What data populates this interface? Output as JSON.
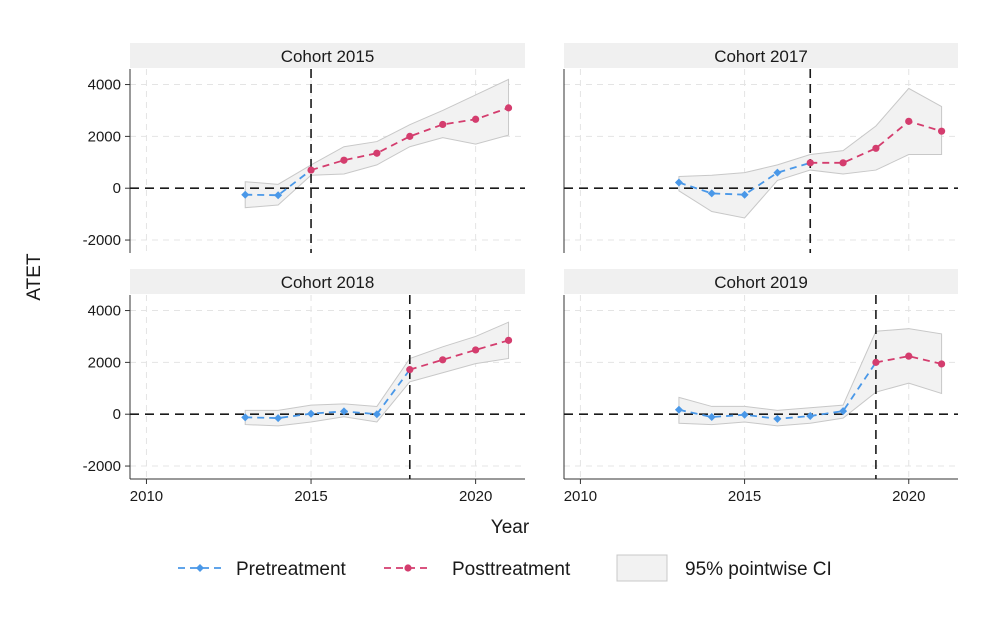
{
  "chart_data": {
    "type": "line",
    "ylabel": "ATET",
    "xlabel": "Year",
    "x_ticks": [
      2010,
      2015,
      2020
    ],
    "y_ticks": [
      -2000,
      0,
      2000,
      4000
    ],
    "x_ticks_shown_on": "bottom panels only",
    "xlim": [
      2009.5,
      2021.5
    ],
    "ylim": [
      -2500,
      4600
    ],
    "grid": "dashed light",
    "legend_position": "bottom",
    "colors": {
      "pretreatment": "#4a98e8",
      "posttreatment": "#d43d6e",
      "ci_fill": "#f2f2f2",
      "ci_stroke": "#c8c8c8",
      "strip_bg": "#f0f0f0",
      "reference_line": "#1a1a1a"
    },
    "legend": [
      {
        "key": "pre",
        "label": "Pretreatment"
      },
      {
        "key": "post",
        "label": "Posttreatment"
      },
      {
        "key": "ci",
        "label": "95% pointwise CI"
      }
    ],
    "panels": [
      {
        "title": "Cohort 2015",
        "treatment_year": 2015,
        "years": [
          2013,
          2014,
          2015,
          2016,
          2017,
          2018,
          2019,
          2020,
          2021
        ],
        "pre": [
          -250,
          -270,
          700
        ],
        "post": [
          700,
          1080,
          1350,
          2000,
          2460,
          2660,
          3100
        ],
        "ci_lower": [
          -750,
          -650,
          500,
          550,
          900,
          1600,
          1950,
          1700,
          2050
        ],
        "ci_upper": [
          250,
          150,
          900,
          1600,
          1800,
          2450,
          3000,
          3600,
          4200
        ]
      },
      {
        "title": "Cohort 2017",
        "treatment_year": 2017,
        "years": [
          2013,
          2014,
          2015,
          2016,
          2017,
          2018,
          2019,
          2020,
          2021
        ],
        "pre": [
          220,
          -200,
          -250,
          600,
          980
        ],
        "post": [
          980,
          980,
          1540,
          2580,
          2200
        ],
        "ci_lower": [
          -100,
          -900,
          -1150,
          300,
          700,
          550,
          700,
          1300,
          1300
        ],
        "ci_upper": [
          450,
          500,
          600,
          900,
          1300,
          1450,
          2400,
          3850,
          3150
        ]
      },
      {
        "title": "Cohort 2018",
        "treatment_year": 2018,
        "years": [
          2013,
          2014,
          2015,
          2016,
          2017,
          2018,
          2019,
          2020,
          2021
        ],
        "pre": [
          -120,
          -150,
          20,
          110,
          0,
          1720
        ],
        "post": [
          1720,
          2100,
          2480,
          2850
        ],
        "ci_lower": [
          -400,
          -450,
          -300,
          -100,
          -300,
          1250,
          1600,
          1950,
          2150
        ],
        "ci_upper": [
          150,
          150,
          350,
          400,
          300,
          2150,
          2600,
          3000,
          3550
        ]
      },
      {
        "title": "Cohort 2019",
        "treatment_year": 2019,
        "years": [
          2013,
          2014,
          2015,
          2016,
          2017,
          2018,
          2019,
          2020,
          2021
        ],
        "pre": [
          170,
          -110,
          -20,
          -180,
          -70,
          120,
          2000
        ],
        "post": [
          2000,
          2240,
          1940
        ],
        "ci_lower": [
          -350,
          -400,
          -300,
          -450,
          -350,
          -150,
          850,
          1200,
          800
        ],
        "ci_upper": [
          650,
          300,
          300,
          150,
          250,
          350,
          3200,
          3300,
          3100
        ]
      }
    ]
  }
}
